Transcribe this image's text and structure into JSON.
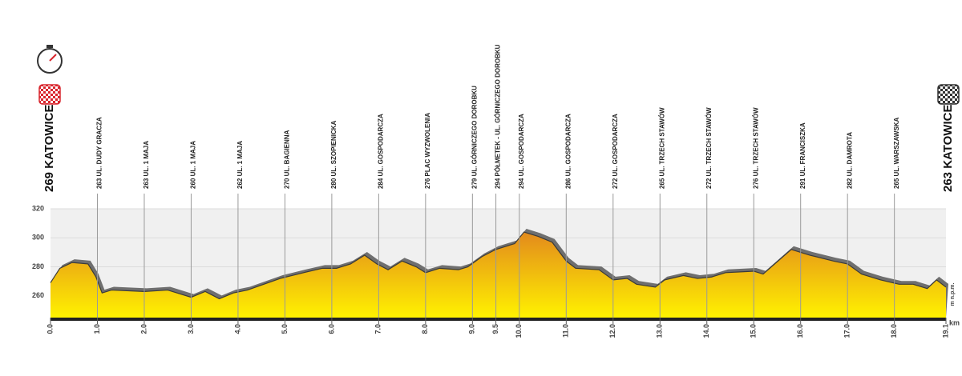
{
  "chart_data": {
    "type": "area",
    "start_label": "269 KATOWICE",
    "end_label": "263 KATOWICE",
    "y_unit": "m n.p.m.",
    "x_unit": "km",
    "x": [
      0,
      0.2,
      0.46,
      0.8,
      0.97,
      1.1,
      1.3,
      2.0,
      2.5,
      3.0,
      3.3,
      3.6,
      3.9,
      4.2,
      4.9,
      5.4,
      5.8,
      6.1,
      6.4,
      6.7,
      6.96,
      7.2,
      7.5,
      7.8,
      8.0,
      8.3,
      8.7,
      8.9,
      9.2,
      9.5,
      9.9,
      10.1,
      10.4,
      10.7,
      11.0,
      11.2,
      11.7,
      12.0,
      12.3,
      12.5,
      12.9,
      13.1,
      13.5,
      13.8,
      14.1,
      14.4,
      15.0,
      15.2,
      15.8,
      16.2,
      16.7,
      17.0,
      17.3,
      17.7,
      18.1,
      18.4,
      18.7,
      18.9,
      19.1
    ],
    "values": [
      269,
      279,
      283,
      282,
      273,
      262,
      264,
      263,
      264,
      259,
      263,
      258,
      262,
      264,
      272,
      276,
      279,
      279,
      282,
      288,
      282,
      278,
      284,
      280,
      276,
      279,
      278,
      280,
      287,
      292,
      296,
      304,
      301,
      297,
      284,
      279,
      278,
      271,
      272,
      268,
      266,
      271,
      274,
      272,
      273,
      276,
      277,
      275,
      292,
      288,
      284,
      282,
      275,
      271,
      268,
      268,
      265,
      271,
      266
    ],
    "xlim": [
      0,
      19.1
    ],
    "ylim": [
      245,
      320
    ],
    "yticks": [
      260,
      280,
      300,
      320
    ],
    "xticks": [
      {
        "value": 0,
        "label": "0.0"
      },
      {
        "value": 1,
        "label": "1.0"
      },
      {
        "value": 2,
        "label": "2.0"
      },
      {
        "value": 3,
        "label": "3.0"
      },
      {
        "value": 4,
        "label": "4.0"
      },
      {
        "value": 5,
        "label": "5.0"
      },
      {
        "value": 6,
        "label": "6.0"
      },
      {
        "value": 7,
        "label": "7.0"
      },
      {
        "value": 8,
        "label": "8.0"
      },
      {
        "value": 9,
        "label": "9.0"
      },
      9.5,
      {
        "value": 10,
        "label": "10.0"
      },
      {
        "value": 11,
        "label": "11.0"
      },
      {
        "value": 12,
        "label": "12.0"
      },
      {
        "value": 13,
        "label": "13.0"
      },
      {
        "value": 14,
        "label": "14.0"
      },
      {
        "value": 15,
        "label": "15.0"
      },
      {
        "value": 16,
        "label": "16.0"
      },
      {
        "value": 17,
        "label": "17.0"
      },
      {
        "value": 18,
        "label": "18.0"
      },
      19.1
    ],
    "waypoints": {
      "x": [
        1,
        2,
        3,
        4,
        5,
        6,
        7,
        8,
        9,
        9.5,
        10,
        11,
        12,
        13,
        14,
        15,
        16,
        17,
        18
      ],
      "labels": [
        "263 UL. DUDY GRACZA",
        "263 UL. 1 MAJA",
        "260 UL. 1 MAJA",
        "262 UL. 1 MAJA",
        "270 UL. BAGIENNA",
        "280 UL. SZOPIENICKA",
        "284 UL. GOSPODARCZA",
        "276 PLAC WYZWOLENIA",
        "279 UL. GÓRNICZEGO DOROBKU",
        "294 PÓŁMETEK - UL. GÓRNICZEGO DOROBKU",
        "294 UL. GOSPODARCZA",
        "286 UL. GOSPODARCZA",
        "272 UL. GOSPODARCZA",
        "265 UL. TRZECH STAWÓW",
        "272 UL. TRZECH STAWÓW",
        "276 UL. TRZECH STAWÓW",
        "291 UL. FRANCISZKA",
        "282 UL. DAMROTA",
        "265 UL. WARSZAWSKA"
      ]
    },
    "fill_top": "#e38a1c",
    "fill_bottom": "#fff200",
    "shadow_color": "#6f6f6f"
  }
}
